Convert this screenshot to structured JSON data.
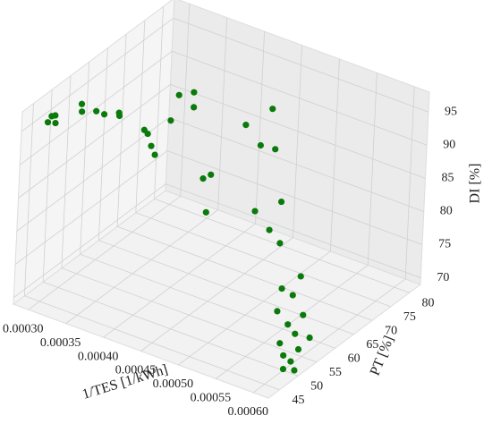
{
  "chart_data": {
    "type": "scatter3d",
    "x_label": "1/TES [1/kWh]",
    "y_label": "PT [%]",
    "z_label": "DI [%]",
    "color": "#0a7a0a",
    "x": [
      0.0003,
      0.0003,
      0.00031,
      0.0003,
      0.00032,
      0.00033,
      0.00033,
      0.00035,
      0.00036,
      0.00037,
      0.00038,
      0.00038,
      0.00039,
      0.0004,
      0.0004,
      0.0004,
      0.00041,
      0.00042,
      0.00046,
      0.00047,
      0.00048,
      0.00048,
      0.0005,
      0.00051,
      0.00052,
      0.00053,
      0.00055,
      0.00055,
      0.00056,
      0.00057,
      0.00058,
      0.00057,
      0.00058,
      0.00058,
      0.00059,
      0.00058,
      0.00059,
      0.0006,
      0.00059,
      0.0006,
      0.0006,
      0.0006,
      0.00061
    ],
    "y": [
      45,
      46,
      45,
      47,
      50,
      48,
      52,
      50,
      52,
      50,
      55,
      56,
      55,
      54,
      58,
      60,
      62,
      60,
      55,
      55,
      52,
      62,
      65,
      60,
      62,
      55,
      58,
      55,
      56,
      55,
      58,
      54,
      56,
      55,
      57,
      53,
      55,
      57,
      52,
      54,
      52,
      50,
      51
    ],
    "z": [
      96,
      96.5,
      96.3,
      96.2,
      97.5,
      97.6,
      96,
      97.2,
      97,
      97.8,
      94,
      93,
      92,
      91.5,
      95,
      98,
      98,
      97,
      90,
      91,
      87,
      96,
      98,
      95,
      94,
      88,
      89,
      86,
      84,
      78,
      79,
      75,
      77,
      73,
      74,
      71,
      72,
      71,
      70,
      70.5,
      69.5,
      69.2,
      69
    ],
    "xlim": [
      0.00028,
      0.00062
    ],
    "ylim": [
      42,
      83
    ],
    "zlim": [
      69,
      98
    ],
    "xticks": [
      {
        "value": 0.0003,
        "label": "0.00030"
      },
      {
        "value": 0.00035,
        "label": "0.00035"
      },
      {
        "value": 0.0004,
        "label": "0.00040"
      },
      {
        "value": 0.00045,
        "label": "0.00045"
      },
      {
        "value": 0.0005,
        "label": "0.00050"
      },
      {
        "value": 0.00055,
        "label": "0.00055"
      },
      {
        "value": 0.0006,
        "label": "0.00060"
      }
    ],
    "yticks": [
      45,
      50,
      55,
      60,
      65,
      70,
      75,
      80
    ],
    "zticks": [
      70,
      75,
      80,
      85,
      90,
      95
    ],
    "grid": true
  }
}
